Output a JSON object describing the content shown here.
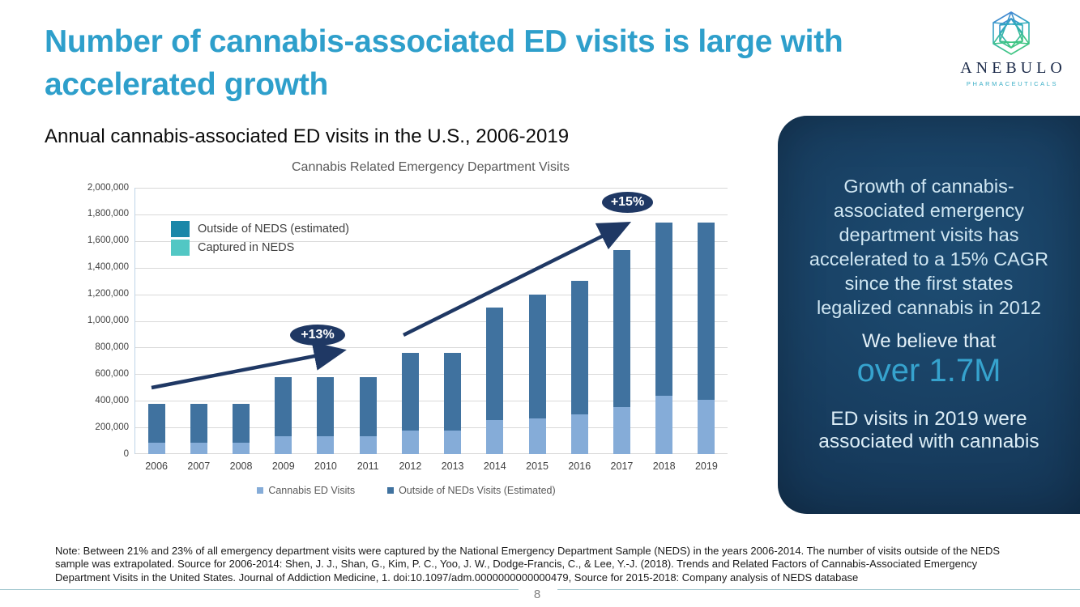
{
  "header": {
    "title": "Number of cannabis-associated ED visits is large with\naccelerated growth"
  },
  "logo": {
    "name": "ANEBULO",
    "subtitle": "PHARMACEUTICALS"
  },
  "main": {
    "heading": "Annual cannabis-associated ED visits in the U.S., 2006-2019"
  },
  "chart_data": {
    "type": "bar",
    "stacked": true,
    "title": "Cannabis Related Emergency Department Visits",
    "categories": [
      "2006",
      "2007",
      "2008",
      "2009",
      "2010",
      "2011",
      "2012",
      "2013",
      "2014",
      "2015",
      "2016",
      "2017",
      "2018",
      "2019"
    ],
    "series": [
      {
        "name": "Captured in NEDS",
        "color": "#85ACD8",
        "values": [
          85000,
          85000,
          85000,
          135000,
          135000,
          135000,
          175000,
          175000,
          255000,
          270000,
          295000,
          355000,
          440000,
          405000
        ]
      },
      {
        "name": "Outside of NEDS (estimated)",
        "color": "#40729F",
        "values": [
          295000,
          295000,
          295000,
          440000,
          440000,
          440000,
          585000,
          585000,
          845000,
          930000,
          1005000,
          1175000,
          1300000,
          1335000
        ]
      }
    ],
    "legend_top": [
      {
        "label": "Outside of NEDS (estimated)",
        "color": "#1B87A8"
      },
      {
        "label": "Captured in NEDS",
        "color": "#52C7C4"
      }
    ],
    "legend_bottom": [
      {
        "label": "Cannabis ED Visits",
        "color": "#85ACD8"
      },
      {
        "label": "Outside of NEDs Visits (Estimated)",
        "color": "#40729F"
      }
    ],
    "annotations": [
      {
        "label": "+13%",
        "from_year": "2006",
        "to_year": "2011"
      },
      {
        "label": "+15%",
        "from_year": "2012",
        "to_year": "2019"
      }
    ],
    "xlabel": "",
    "ylabel": "",
    "ylim": [
      0,
      2000000
    ],
    "ytick_step": 200000,
    "ytick_labels": [
      "0",
      "200,000",
      "400,000",
      "600,000",
      "800,000",
      "1,000,000",
      "1,200,000",
      "1,400,000",
      "1,600,000",
      "1,800,000",
      "2,000,000"
    ],
    "grid": true,
    "legend_position": "top-left-inside and bottom-center"
  },
  "panel": {
    "p1": "Growth of cannabis-\nassociated emergency\ndepartment visits has\naccelerated to a 15% CAGR\nsince the first states\nlegalized cannabis in 2012",
    "p2": "We believe that",
    "highlight": "over 1.7M",
    "p3": "ED visits in 2019 were\nassociated with cannabis"
  },
  "footer": {
    "note": "Note: Between 21% and 23% of all emergency department visits were captured by the National Emergency Department Sample (NEDS) in the years 2006-2014. The number of visits outside of the NEDS sample was extrapolated. Source for 2006-2014: Shen, J. J., Shan, G., Kim, P. C., Yoo, J. W., Dodge-Francis, C., & Lee, Y.-J. (2018). Trends and Related Factors of Cannabis-Associated Emergency Department Visits in the United States. Journal of Addiction Medicine, 1. doi:10.1097/adm.0000000000000479, Source for 2015-2018: Company analysis of NEDS database",
    "page_number": "8"
  },
  "colors": {
    "title_blue": "#2E9FCB",
    "bar_light": "#85ACD8",
    "bar_dark": "#40729F",
    "arrow_navy": "#1F3864",
    "highlight_teal": "#36A3CE",
    "panel_navy": "#16395A"
  }
}
